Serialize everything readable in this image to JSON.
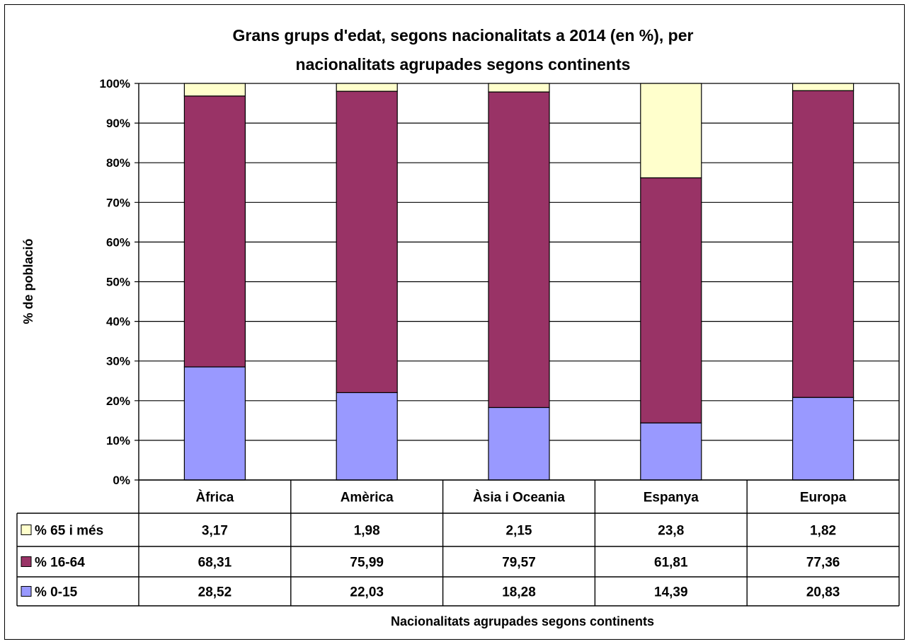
{
  "chart_data": {
    "type": "bar",
    "stacked": true,
    "percent_stacked": true,
    "title_line1": "Grans grups d'edat, segons nacionalitats a 2014 (en %), per",
    "title_line2": "nacionalitats agrupades segons continents",
    "xlabel": "Nacionalitats agrupades segons continents",
    "ylabel": "% de població",
    "ylim": [
      0,
      100
    ],
    "yticks": [
      "0%",
      "10%",
      "20%",
      "30%",
      "40%",
      "50%",
      "60%",
      "70%",
      "80%",
      "90%",
      "100%"
    ],
    "categories": [
      "Àfrica",
      "Amèrica",
      "Àsia i Oceania",
      "Espanya",
      "Europa"
    ],
    "series": [
      {
        "name": "% 0-15",
        "color": "#9999ff",
        "values": [
          "28,52",
          "22,03",
          "18,28",
          "14,39",
          "20,83"
        ]
      },
      {
        "name": "% 16-64",
        "color": "#993366",
        "values": [
          "68,31",
          "75,99",
          "79,57",
          "61,81",
          "77,36"
        ]
      },
      {
        "name": "% 65 i més",
        "color": "#ffffcc",
        "values": [
          "3,17",
          "1,98",
          "2,15",
          "23,8",
          "1,82"
        ]
      }
    ],
    "table_row_order": [
      "% 65 i més",
      "% 16-64",
      "% 0-15"
    ],
    "grid": true,
    "legend": "data-table"
  }
}
